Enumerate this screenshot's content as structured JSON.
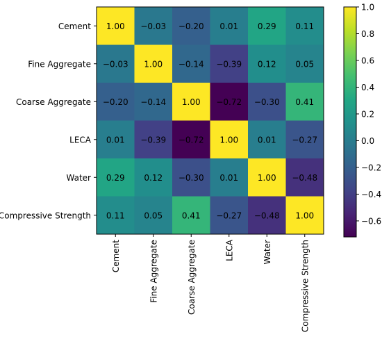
{
  "chart_data": {
    "type": "heatmap",
    "title": "",
    "xlabel": "",
    "ylabel": "",
    "categories": [
      "Cement",
      "Fine Aggregate",
      "Coarse Aggregate",
      "LECA",
      "Water",
      "Compressive Strength"
    ],
    "matrix": [
      [
        "1.00",
        "−0.03",
        "−0.20",
        "0.01",
        "0.29",
        "0.11"
      ],
      [
        "−0.03",
        "1.00",
        "−0.14",
        "−0.39",
        "0.12",
        "0.05"
      ],
      [
        "−0.20",
        "−0.14",
        "1.00",
        "−0.72",
        "−0.30",
        "0.41"
      ],
      [
        "0.01",
        "−0.39",
        "−0.72",
        "1.00",
        "0.01",
        "−0.27"
      ],
      [
        "0.29",
        "0.12",
        "−0.30",
        "0.01",
        "1.00",
        "−0.48"
      ],
      [
        "0.11",
        "0.05",
        "0.41",
        "−0.27",
        "−0.48",
        "1.00"
      ]
    ],
    "colorbar": {
      "colormap": "viridis",
      "vmin": -0.72,
      "vmax": 1.0,
      "ticks": [
        1.0,
        0.8,
        0.6,
        0.4,
        0.2,
        0.0,
        -0.2,
        -0.4,
        -0.6
      ],
      "tick_labels": [
        "1.0",
        "0.8",
        "0.6",
        "0.4",
        "0.2",
        "0.0",
        "−0.2",
        "−0.4",
        "−0.6"
      ]
    },
    "grid": false
  }
}
